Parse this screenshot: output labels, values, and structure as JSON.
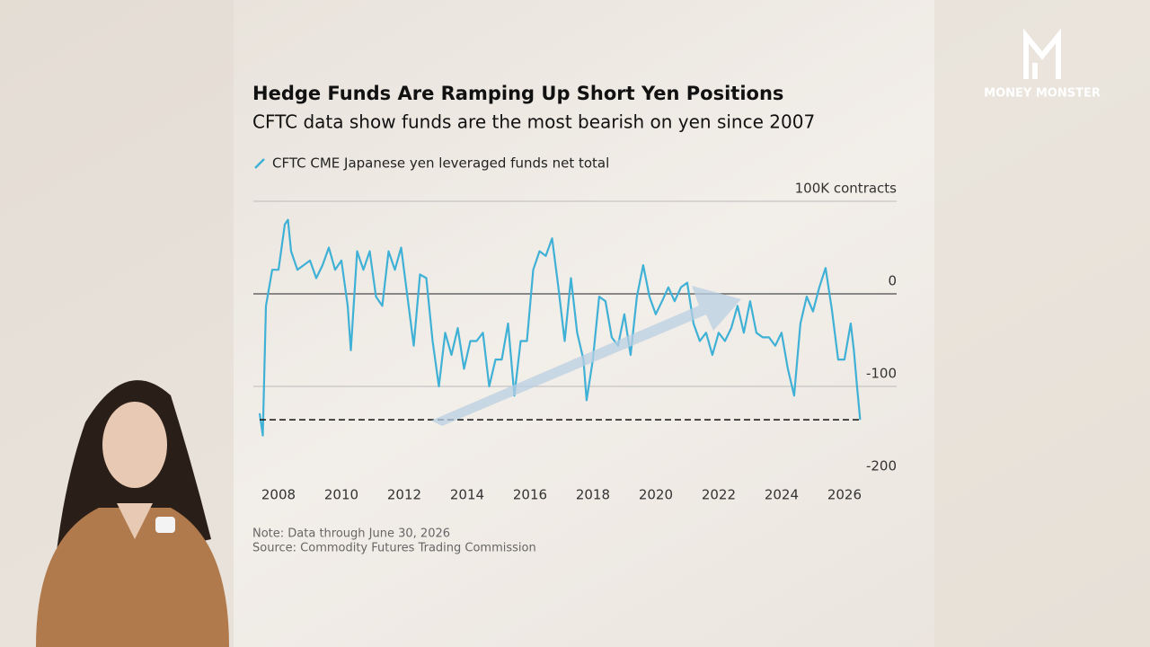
{
  "brand": "MONEY MONSTER",
  "chart_data": {
    "type": "line",
    "title": "Hedge Funds Are Ramping Up Short Yen Positions",
    "subtitle": "CFTC  data show funds are the most bearish on yen since 2007",
    "note": "Note: Data through June 30, 2026",
    "source": "Source: Commodity Futures Trading Commission",
    "x": [
      2007.4,
      2007.5,
      2007.6,
      2007.8,
      2008.0,
      2008.2,
      2008.3,
      2008.4,
      2008.6,
      2008.8,
      2009.0,
      2009.2,
      2009.4,
      2009.6,
      2009.8,
      2010.0,
      2010.2,
      2010.3,
      2010.5,
      2010.7,
      2010.9,
      2011.1,
      2011.3,
      2011.5,
      2011.7,
      2011.9,
      2012.1,
      2012.3,
      2012.5,
      2012.7,
      2012.9,
      2013.1,
      2013.3,
      2013.5,
      2013.7,
      2013.9,
      2014.1,
      2014.3,
      2014.5,
      2014.7,
      2014.9,
      2015.1,
      2015.3,
      2015.5,
      2015.7,
      2015.9,
      2016.1,
      2016.3,
      2016.5,
      2016.7,
      2016.9,
      2017.1,
      2017.3,
      2017.5,
      2017.7,
      2017.8,
      2018.0,
      2018.2,
      2018.4,
      2018.6,
      2018.8,
      2019.0,
      2019.2,
      2019.4,
      2019.6,
      2019.8,
      2020.0,
      2020.2,
      2020.4,
      2020.6,
      2020.8,
      2021.0,
      2021.2,
      2021.4,
      2021.6,
      2021.8,
      2022.0,
      2022.2,
      2022.4,
      2022.6,
      2022.8,
      2023.0,
      2023.2,
      2023.4,
      2023.6,
      2023.8,
      2024.0,
      2024.2,
      2024.4,
      2024.6,
      2024.8,
      2025.0,
      2025.2,
      2025.4,
      2025.6,
      2025.8,
      2026.0,
      2026.2,
      2026.3,
      2026.4,
      2026.5
    ],
    "series": [
      {
        "name": "CFTC CME Japanese yen leveraged funds net total",
        "color": "#3fb1d6",
        "values": [
          -129,
          -153,
          -13,
          26,
          26,
          75,
          80,
          46,
          26,
          31,
          36,
          17,
          31,
          50,
          26,
          36,
          -13,
          -61,
          46,
          26,
          46,
          -3,
          -13,
          46,
          26,
          50,
          -3,
          -56,
          21,
          17,
          -51,
          -100,
          -42,
          -66,
          -37,
          -81,
          -51,
          -51,
          -42,
          -100,
          -71,
          -71,
          -32,
          -110,
          -51,
          -51,
          26,
          46,
          41,
          60,
          7,
          -51,
          17,
          -42,
          -71,
          -115,
          -71,
          -3,
          -8,
          -47,
          -56,
          -22,
          -66,
          -3,
          31,
          -3,
          -22,
          -8,
          7,
          -8,
          7,
          12,
          -32,
          -51,
          -42,
          -66,
          -42,
          -51,
          -37,
          -13,
          -42,
          -8,
          -42,
          -47,
          -47,
          -56,
          -42,
          -81,
          -110,
          -32,
          -3,
          -19,
          7,
          28,
          -17,
          -71,
          -71,
          -32,
          -61,
          -100,
          -136
        ]
      }
    ],
    "reference_line": -136,
    "xlim": [
      2007.2,
      2027.66
    ],
    "xticks": [
      2008,
      2010,
      2012,
      2014,
      2016,
      2018,
      2020,
      2022,
      2024,
      2026
    ],
    "ylim": [
      -200,
      100
    ],
    "yticks": [
      {
        "value": 100,
        "label": "100K contracts"
      },
      0,
      -100,
      -200
    ],
    "grid": true
  }
}
